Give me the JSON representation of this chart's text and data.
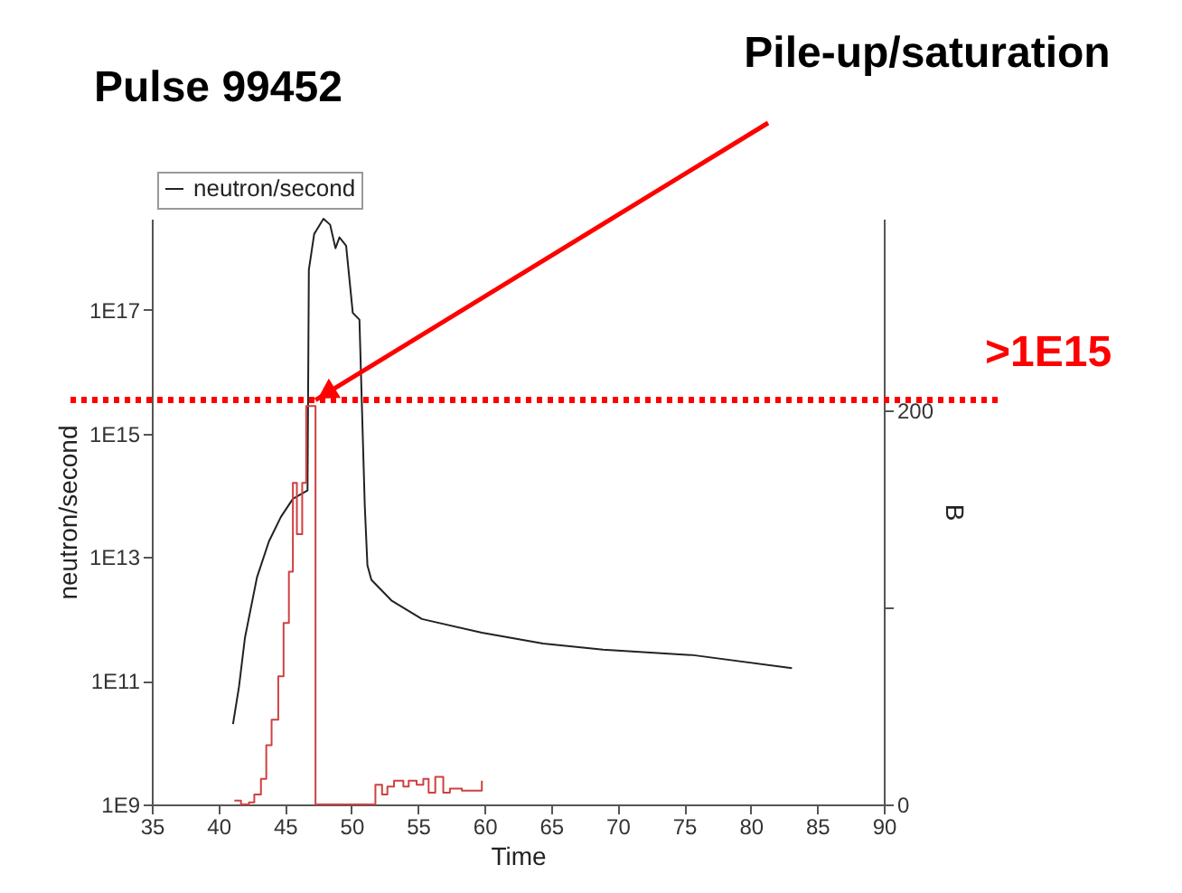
{
  "chart_data": {
    "type": "line",
    "title": "Pulse 99452",
    "xlabel": "Time",
    "ylabel": "neutron/second",
    "y2label": "B",
    "log": "y",
    "grid": false,
    "legend": "top left",
    "marker": "none",
    "xlim": [
      35,
      90
    ],
    "xticks": [
      35,
      40,
      45,
      50,
      55,
      60,
      65,
      70,
      75,
      80,
      85,
      90
    ],
    "ylim": [
      1000000000.0,
      3e+18
    ],
    "yticks": [
      {
        "value": 1000000000.0,
        "label": "1E9"
      },
      {
        "value": 100000000000.0,
        "label": "1E11"
      },
      {
        "value": 10000000000000.0,
        "label": "1E13"
      },
      {
        "value": 1000000000000000.0,
        "label": "1E15"
      },
      {
        "value": 1e+17,
        "label": "1E17"
      }
    ],
    "y2lim": [
      0,
      297
    ],
    "y2ticks": [
      0,
      {
        "value": 100,
        "label": null
      },
      200
    ],
    "series": [
      {
        "name": "neutron/second",
        "color": "#222222",
        "line_style": "solid",
        "x": [
          41.1,
          41.55,
          42.0,
          42.9,
          43.8,
          44.7,
          45.6,
          46.7,
          46.8,
          47.2,
          47.9,
          48.4,
          48.8,
          49.1,
          49.6,
          50.1,
          50.6,
          51.0,
          51.2,
          51.5,
          53.0,
          55.3,
          59.8,
          64.4,
          68.9,
          75.7,
          83.1
        ],
        "values": [
          20000000000.0,
          80000000000.0,
          500000000000.0,
          4700000000000.0,
          18000000000000.0,
          45000000000000.0,
          88000000000000.0,
          120000000000000.0,
          4.5e+17,
          1.7e+18,
          3e+18,
          2.4e+18,
          1e+18,
          1.5e+18,
          1.1e+18,
          9e+16,
          7e+16,
          70000000000000.0,
          7400000000000.0,
          4300000000000.0,
          2000000000000.0,
          1000000000000.0,
          600000000000.0,
          400000000000.0,
          320000000000.0,
          260000000000.0,
          160000000000.0
        ]
      },
      {
        "type": "step",
        "axis": "y2",
        "color": "#d04040",
        "line_style": "solid",
        "x": [
          41.2,
          41.7,
          42.3,
          42.7,
          43.2,
          43.6,
          44.0,
          44.5,
          44.9,
          45.3,
          45.6,
          45.9,
          46.3,
          46.6,
          47.3,
          51.8,
          52.3,
          52.7,
          53.2,
          53.9,
          54.3,
          54.9,
          55.4,
          55.8,
          56.3,
          56.9,
          57.4,
          58.3,
          59.8
        ],
        "values": [
          2,
          0,
          1,
          5,
          13,
          30,
          43,
          65,
          92,
          118,
          163,
          137,
          163,
          202,
          0,
          10,
          5,
          9,
          12,
          9,
          12,
          10,
          13,
          6,
          14,
          6,
          8,
          7,
          12
        ]
      }
    ],
    "ref_lines": [
      {
        "axis": "y",
        "value": 3500000000000000.0,
        "label": ">1E15",
        "color": "#ff0000",
        "line_style": "dotted"
      }
    ],
    "annotations": [
      {
        "text": "Pile-up/saturation",
        "x": 47.3,
        "y": 3500000000000000.0
      }
    ]
  }
}
